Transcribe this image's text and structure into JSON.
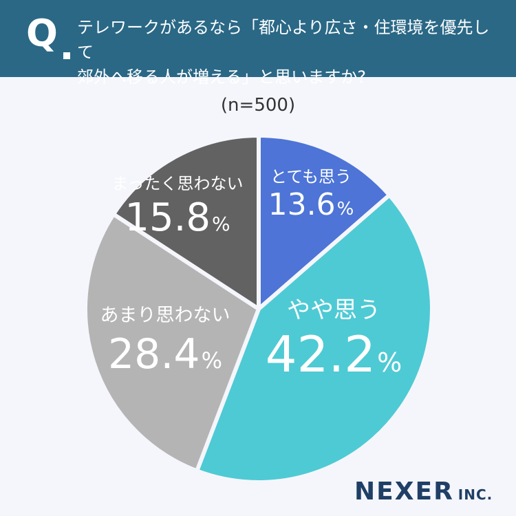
{
  "header": {
    "q_mark": "Q",
    "question": "テレワークがあるなら「都心より広さ・住環境を優先して\n郊外へ移る人が増える」と思いますか?"
  },
  "sample_size": "(n=500)",
  "colors": {
    "header_bg": "#2a6886",
    "background": "#f5f6fb",
    "slice_strongly_agree": "#4d74d6",
    "slice_somewhat_agree": "#4ecad4",
    "slice_somewhat_disagree": "#b4b4b4",
    "slice_strongly_disagree": "#626262",
    "logo": "#1f3f66"
  },
  "chart_data": {
    "type": "pie",
    "title": "",
    "slices": [
      {
        "label": "とても思う",
        "value": 13.6,
        "display": "13.6",
        "color": "#4d74d6"
      },
      {
        "label": "やや思う",
        "value": 42.2,
        "display": "42.2",
        "color": "#4ecad4"
      },
      {
        "label": "あまり思わない",
        "value": 28.4,
        "display": "28.4",
        "color": "#b4b4b4"
      },
      {
        "label": "まったく思わない",
        "value": 15.8,
        "display": "15.8",
        "color": "#626262"
      }
    ],
    "unit": "%",
    "start_angle": "12 o'clock",
    "direction": "clockwise"
  },
  "logo": {
    "name": "NEXER",
    "suffix": "INC."
  }
}
